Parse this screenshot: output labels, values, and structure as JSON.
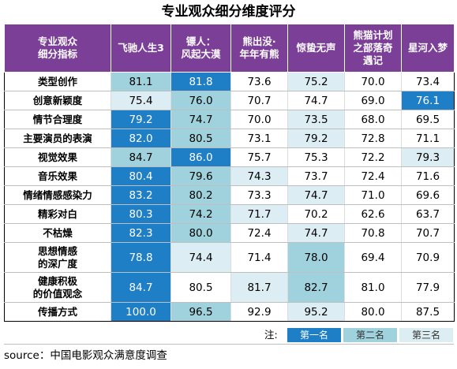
{
  "title": "专业观众细分维度评分",
  "header": {
    "dimension_col": [
      "专业观众",
      "细分指标"
    ],
    "films": [
      [
        "飞驰人生3"
      ],
      [
        "镖人：",
        "风起大漠"
      ],
      [
        "熊出没·",
        "年年有熊"
      ],
      [
        "惊蛰无声"
      ],
      [
        "熊猫计划",
        "之部落奇",
        "遇记"
      ],
      [
        "星河入梦"
      ]
    ]
  },
  "rows": [
    {
      "label": [
        "类型创作"
      ],
      "values": [
        "81.1",
        "81.8",
        "73.6",
        "75.2",
        "70.0",
        "73.4"
      ],
      "ranks": [
        2,
        1,
        0,
        3,
        0,
        0
      ]
    },
    {
      "label": [
        "创意新颖度"
      ],
      "values": [
        "75.4",
        "76.0",
        "70.7",
        "74.7",
        "69.0",
        "76.1"
      ],
      "ranks": [
        3,
        2,
        0,
        0,
        0,
        1
      ]
    },
    {
      "label": [
        "情节合理度"
      ],
      "values": [
        "79.2",
        "74.7",
        "70.0",
        "73.5",
        "68.0",
        "69.5"
      ],
      "ranks": [
        1,
        2,
        0,
        3,
        0,
        0
      ]
    },
    {
      "label": [
        "主要演员的表演"
      ],
      "values": [
        "82.0",
        "80.5",
        "73.1",
        "79.2",
        "72.8",
        "71.1"
      ],
      "ranks": [
        1,
        2,
        0,
        3,
        0,
        0
      ]
    },
    {
      "label": [
        "视觉效果"
      ],
      "values": [
        "84.7",
        "86.0",
        "75.7",
        "75.3",
        "72.2",
        "79.3"
      ],
      "ranks": [
        2,
        1,
        0,
        0,
        0,
        3
      ]
    },
    {
      "label": [
        "音乐效果"
      ],
      "values": [
        "80.4",
        "79.6",
        "74.3",
        "73.7",
        "72.4",
        "71.6"
      ],
      "ranks": [
        1,
        2,
        3,
        0,
        0,
        0
      ]
    },
    {
      "label": [
        "情绪情感感染力"
      ],
      "values": [
        "83.2",
        "80.2",
        "73.3",
        "74.7",
        "71.0",
        "69.6"
      ],
      "ranks": [
        1,
        2,
        0,
        3,
        0,
        0
      ]
    },
    {
      "label": [
        "精彩对白"
      ],
      "values": [
        "80.3",
        "74.2",
        "71.7",
        "70.2",
        "62.6",
        "63.7"
      ],
      "ranks": [
        1,
        2,
        3,
        0,
        0,
        0
      ]
    },
    {
      "label": [
        "不枯燥"
      ],
      "values": [
        "82.3",
        "80.0",
        "72.4",
        "74.7",
        "70.8",
        "70.7"
      ],
      "ranks": [
        1,
        2,
        0,
        3,
        0,
        0
      ]
    },
    {
      "label": [
        "思想情感",
        "的深广度"
      ],
      "values": [
        "78.8",
        "74.4",
        "71.4",
        "78.0",
        "69.4",
        "70.9"
      ],
      "ranks": [
        1,
        3,
        0,
        2,
        0,
        0
      ]
    },
    {
      "label": [
        "健康积极",
        "的价值观念"
      ],
      "values": [
        "84.7",
        "80.5",
        "81.7",
        "82.7",
        "81.0",
        "77.9"
      ],
      "ranks": [
        1,
        0,
        3,
        2,
        0,
        0
      ]
    },
    {
      "label": [
        "传播方式"
      ],
      "values": [
        "100.0",
        "96.5",
        "92.9",
        "95.2",
        "80.0",
        "87.5"
      ],
      "ranks": [
        1,
        2,
        0,
        3,
        0,
        0
      ]
    }
  ],
  "legend": {
    "note": "注:",
    "first": "第一名",
    "second": "第二名",
    "third": "第三名"
  },
  "source": "source：中国电影观众满意度调查",
  "colors": {
    "header_bg": "#7b3f98",
    "rank1": "#1f7fc6",
    "rank2": "#9fd2dc",
    "rank3": "#dcedf3"
  }
}
